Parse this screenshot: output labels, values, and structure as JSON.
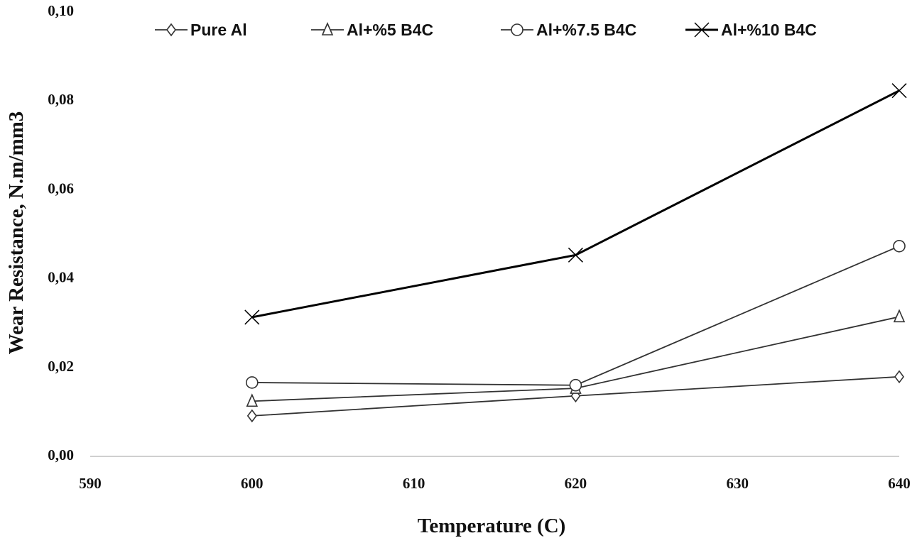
{
  "chart_data": {
    "type": "line",
    "title": "",
    "xlabel": "Temperature (C)",
    "ylabel": "Wear Resistance, N.m/mm3",
    "xlim": [
      590,
      640
    ],
    "ylim": [
      0,
      0.1
    ],
    "x_ticks": [
      "590",
      "600",
      "610",
      "620",
      "630",
      "640"
    ],
    "y_ticks": [
      "0,00",
      "0,02",
      "0,04",
      "0,06",
      "0,08",
      "0,10"
    ],
    "grid": false,
    "legend_position": "top",
    "x": [
      600,
      620,
      640
    ],
    "series": [
      {
        "name": "Pure Al",
        "marker": "diamond",
        "values": [
          0.0088,
          0.0133,
          0.0176
        ],
        "color": "#333333"
      },
      {
        "name": "Al+%5 B4C",
        "marker": "triangle",
        "values": [
          0.0121,
          0.015,
          0.0311
        ],
        "color": "#333333"
      },
      {
        "name": "Al+%7.5 B4C",
        "marker": "circle",
        "values": [
          0.0163,
          0.0157,
          0.047
        ],
        "color": "#333333"
      },
      {
        "name": "Al+%10 B4C",
        "marker": "x",
        "values": [
          0.031,
          0.045,
          0.082
        ],
        "color": "#000000"
      }
    ]
  }
}
